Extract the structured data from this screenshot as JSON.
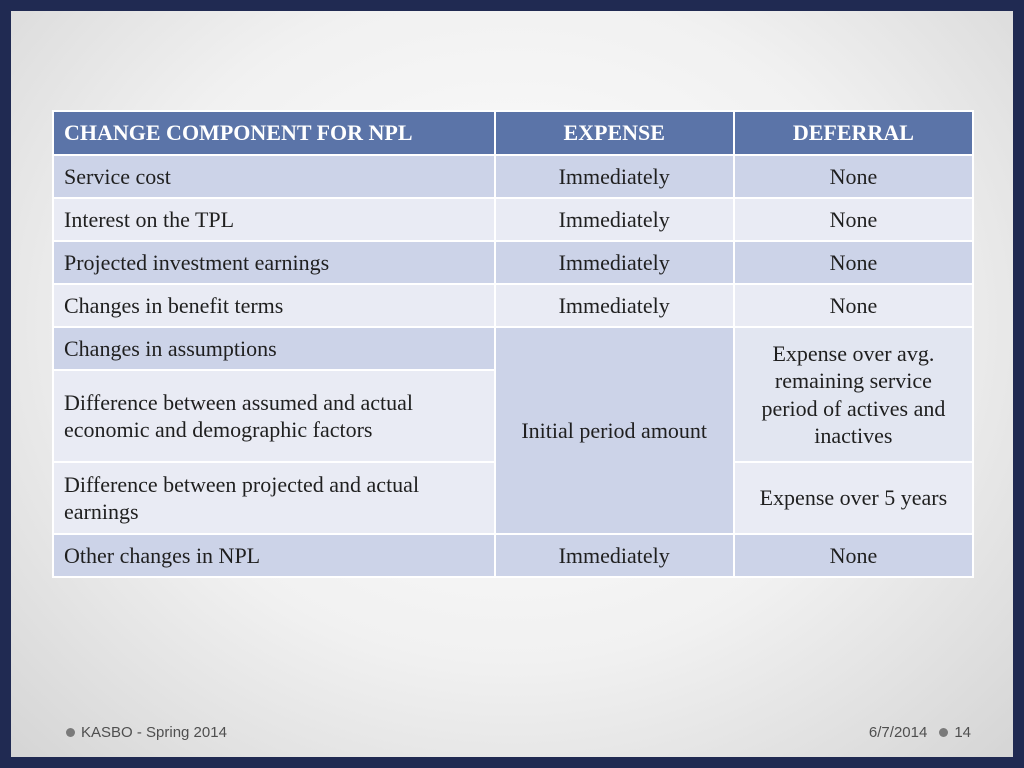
{
  "table": {
    "headers": [
      "CHANGE COMPONENT FOR NPL",
      "EXPENSE",
      "DEFERRAL"
    ],
    "rows": [
      {
        "component": "Service cost",
        "expense": "Immediately",
        "deferral": "None"
      },
      {
        "component": "Interest on the TPL",
        "expense": "Immediately",
        "deferral": "None"
      },
      {
        "component": "Projected investment earnings",
        "expense": "Immediately",
        "deferral": "None"
      },
      {
        "component": "Changes in benefit terms",
        "expense": "Immediately",
        "deferral": "None"
      },
      {
        "component": "Changes in assumptions"
      },
      {
        "component": "Difference between assumed and actual economic and demographic factors"
      },
      {
        "component": "Difference between projected and actual earnings",
        "deferral": "Expense over 5 years"
      },
      {
        "component": "Other changes in NPL",
        "expense": "Immediately",
        "deferral": "None"
      }
    ],
    "merged": {
      "expense": "Initial period amount",
      "deferral": "Expense over avg. remaining service period of actives and inactives"
    }
  },
  "footer": {
    "left_text": "KASBO - Spring 2014",
    "date": "6/7/2014",
    "page_number": "14"
  },
  "colors": {
    "header_bg": "#5b74a8",
    "band_dark": "#ccd3e8",
    "band_light": "#e9ebf4",
    "frame": "#202a52",
    "footer_text": "#4f4f4f"
  }
}
